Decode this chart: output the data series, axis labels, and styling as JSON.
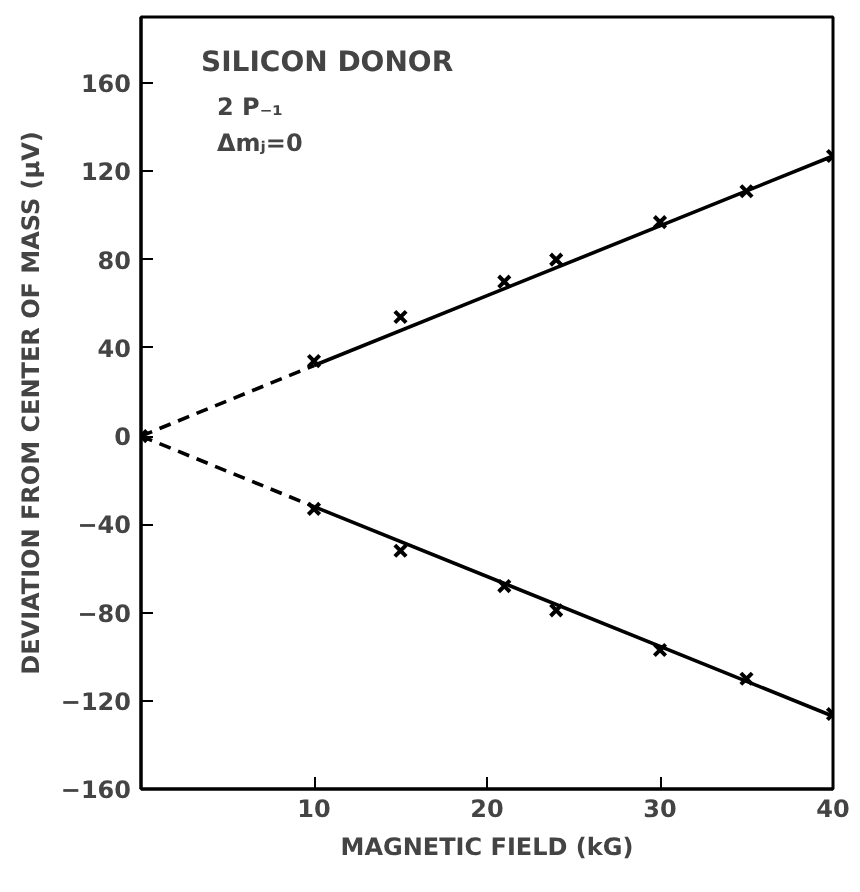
{
  "chart_data": {
    "type": "scatter",
    "xlabel": "MAGNETIC FIELD (kG)",
    "ylabel": "DEVIATION FROM CENTER OF MASS (μV)",
    "annotations": [
      "SILICON DONOR",
      "2 P₋₁",
      "Δmⱼ=0"
    ],
    "xlim": [
      0,
      40
    ],
    "ylim": [
      -160,
      190
    ],
    "xticks": [
      10,
      20,
      30,
      40
    ],
    "yticks": [
      -160,
      -120,
      -80,
      -40,
      0,
      40,
      80,
      120,
      160
    ],
    "grid": false,
    "marker": "cross",
    "series": [
      {
        "color": "#000000",
        "x": [
          10,
          15,
          21,
          24,
          30,
          35,
          40
        ],
        "values": [
          34,
          54,
          70,
          80,
          97,
          111,
          127
        ]
      },
      {
        "color": "#000000",
        "x": [
          10,
          15,
          21,
          24,
          30,
          35,
          40
        ],
        "values": [
          -33,
          -52,
          -68,
          -79,
          -97,
          -110,
          -126
        ]
      },
      {
        "color": "#000000",
        "x": [
          0
        ],
        "values": [
          0
        ]
      },
      {
        "type": "line",
        "color": "#000000",
        "line_style": "dashed",
        "marker": "none",
        "x": [
          0,
          10
        ],
        "values": [
          0,
          32
        ]
      },
      {
        "type": "line",
        "color": "#000000",
        "line_style": "solid",
        "marker": "none",
        "x": [
          10,
          40
        ],
        "values": [
          32,
          127
        ]
      },
      {
        "type": "line",
        "color": "#000000",
        "line_style": "dashed",
        "marker": "none",
        "x": [
          0,
          10
        ],
        "values": [
          0,
          -32
        ]
      },
      {
        "type": "line",
        "color": "#000000",
        "line_style": "solid",
        "marker": "none",
        "x": [
          10,
          40
        ],
        "values": [
          -32,
          -127
        ]
      }
    ]
  }
}
